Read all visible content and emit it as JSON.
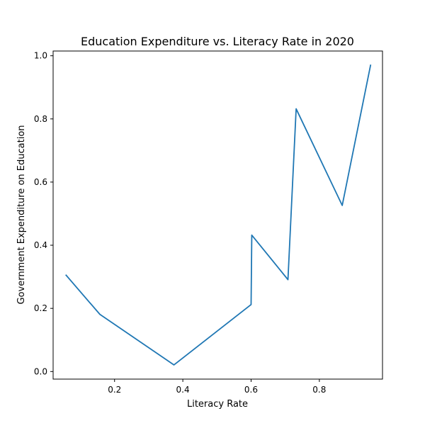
{
  "chart_data": {
    "type": "line",
    "title": "Education Expenditure vs. Literacy Rate in 2020",
    "xlabel": "Literacy Rate",
    "ylabel": "Government Expenditure on Education",
    "xlim": [
      0.02,
      0.985
    ],
    "ylim": [
      -0.024,
      1.015
    ],
    "x_ticks": [
      0.2,
      0.4,
      0.6,
      0.8
    ],
    "y_ticks": [
      0.0,
      0.2,
      0.4,
      0.6,
      0.8,
      1.0
    ],
    "x_tick_labels": [
      "0.2",
      "0.4",
      "0.6",
      "0.8"
    ],
    "y_tick_labels": [
      "0.0",
      "0.2",
      "0.4",
      "0.6",
      "0.8",
      "1.0"
    ],
    "grid": false,
    "series": [
      {
        "color": "#1f77b4",
        "x": [
          0.058,
          0.157,
          0.374,
          0.6,
          0.602,
          0.708,
          0.732,
          0.867,
          0.95
        ],
        "y": [
          0.305,
          0.181,
          0.021,
          0.212,
          0.432,
          0.291,
          0.832,
          0.526,
          0.97
        ]
      }
    ]
  }
}
